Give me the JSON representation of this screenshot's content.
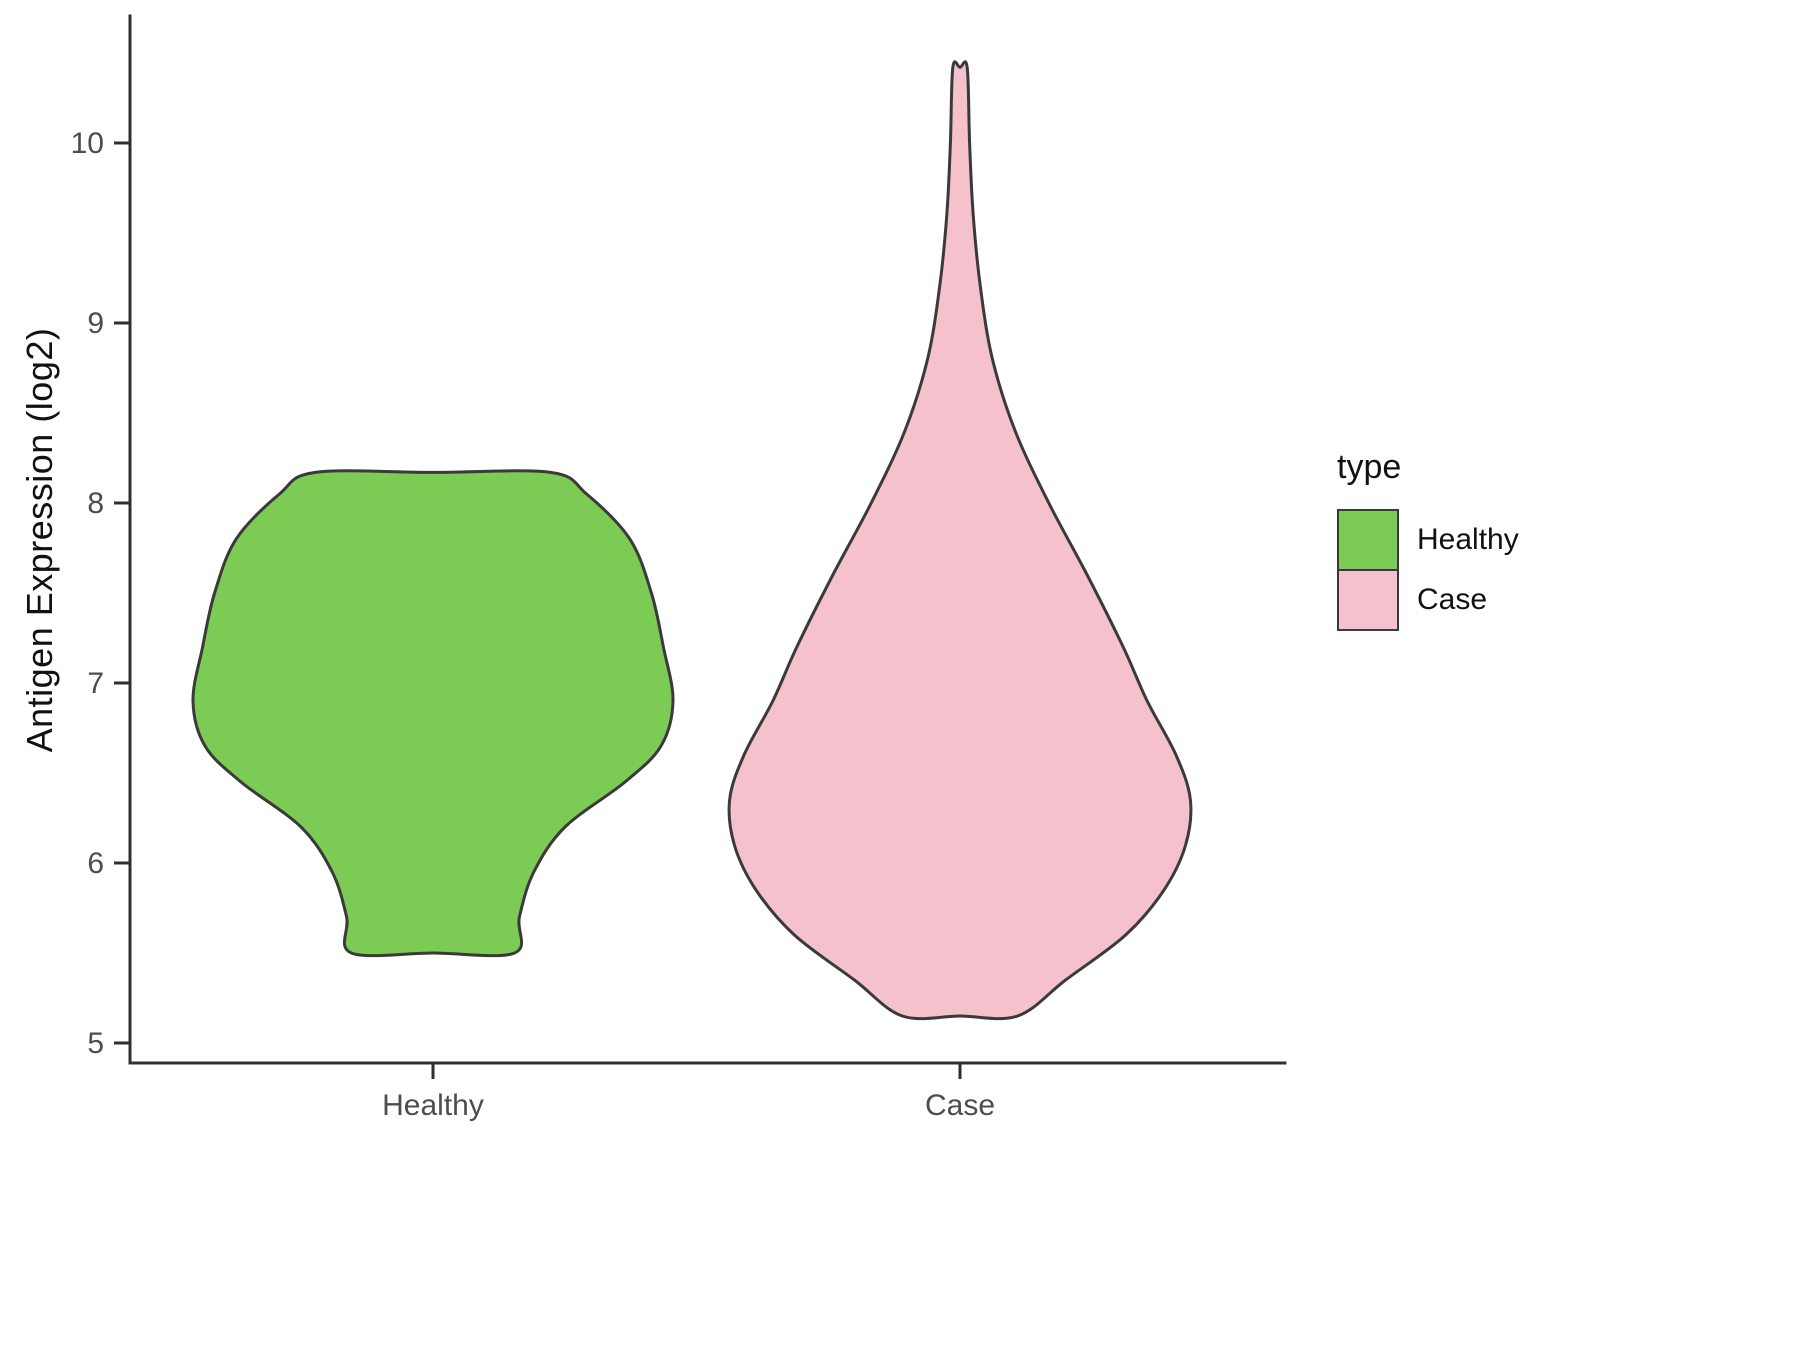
{
  "chart_data": {
    "type": "violin",
    "title": "",
    "xlabel": "",
    "ylabel": "Antigen Expression (log2)",
    "categories": [
      "Healthy",
      "Case"
    ],
    "ylim": [
      4.9,
      10.7
    ],
    "y_ticks": [
      5,
      6,
      7,
      8,
      9,
      10
    ],
    "grid": false,
    "legend_position": "right",
    "legend": {
      "title": "type",
      "entries": [
        {
          "label": "Healthy",
          "color": "#7BCB54"
        },
        {
          "label": "Case",
          "color": "#F5C1CD"
        }
      ]
    },
    "axis_color": "#2f2f2f",
    "axis_text_color": "#4d4d4d",
    "violin_stroke_color": "#3a3a3a",
    "violins": [
      {
        "category": "Healthy",
        "color": "#7BCB54",
        "y_min": 5.5,
        "y_max": 8.17,
        "profile_note": "y = expression value, w = half-width density (0-1 of max violin half-width)",
        "profile": [
          {
            "y": 8.17,
            "w": 0.49
          },
          {
            "y": 8.05,
            "w": 0.64
          },
          {
            "y": 7.8,
            "w": 0.82
          },
          {
            "y": 7.5,
            "w": 0.91
          },
          {
            "y": 7.2,
            "w": 0.96
          },
          {
            "y": 6.9,
            "w": 1.0
          },
          {
            "y": 6.65,
            "w": 0.95
          },
          {
            "y": 6.45,
            "w": 0.8
          },
          {
            "y": 6.2,
            "w": 0.55
          },
          {
            "y": 5.95,
            "w": 0.42
          },
          {
            "y": 5.7,
            "w": 0.36
          },
          {
            "y": 5.5,
            "w": 0.34
          }
        ]
      },
      {
        "category": "Case",
        "color": "#F5C1CD",
        "y_min": 5.15,
        "y_max": 10.42,
        "profile_note": "y = expression value, w = half-width density (0-1 of max violin half-width)",
        "profile": [
          {
            "y": 10.42,
            "w": 0.03
          },
          {
            "y": 10.0,
            "w": 0.04
          },
          {
            "y": 9.6,
            "w": 0.055
          },
          {
            "y": 9.2,
            "w": 0.085
          },
          {
            "y": 8.8,
            "w": 0.135
          },
          {
            "y": 8.4,
            "w": 0.23
          },
          {
            "y": 8.0,
            "w": 0.37
          },
          {
            "y": 7.6,
            "w": 0.53
          },
          {
            "y": 7.2,
            "w": 0.68
          },
          {
            "y": 6.9,
            "w": 0.78
          },
          {
            "y": 6.6,
            "w": 0.9
          },
          {
            "y": 6.35,
            "w": 0.96
          },
          {
            "y": 6.1,
            "w": 0.94
          },
          {
            "y": 5.85,
            "w": 0.85
          },
          {
            "y": 5.6,
            "w": 0.69
          },
          {
            "y": 5.35,
            "w": 0.44
          },
          {
            "y": 5.15,
            "w": 0.24
          }
        ]
      }
    ]
  }
}
